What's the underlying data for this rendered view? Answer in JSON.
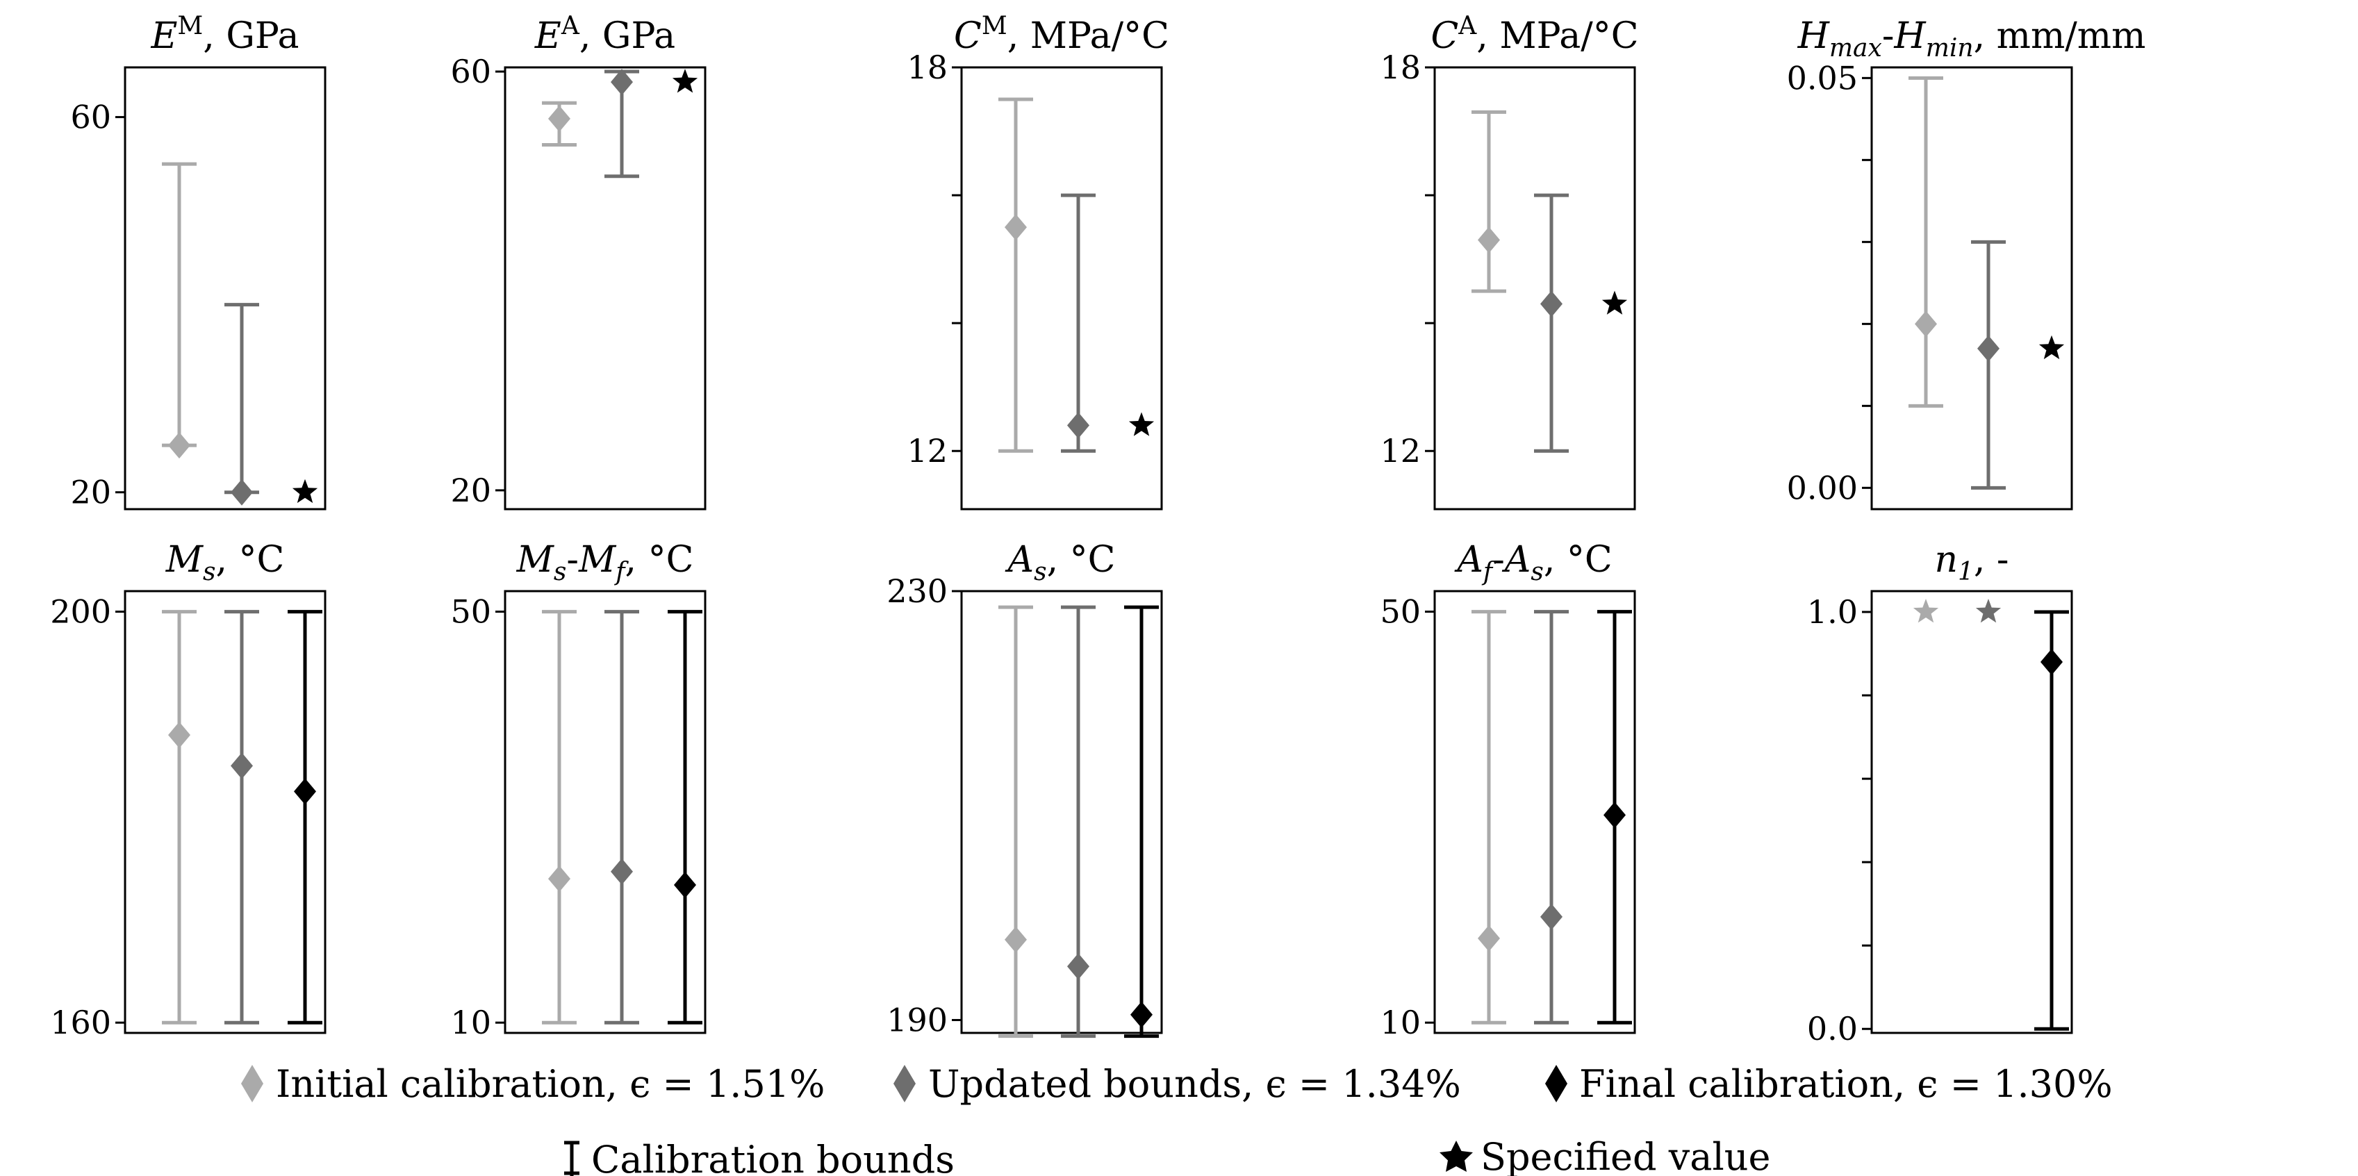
{
  "figure": {
    "legend": {
      "initial_label": "Initial calibration, ϵ = 1.51%",
      "updated_label": "Updated bounds, ϵ = 1.34%",
      "final_label": "Final calibration, ϵ = 1.30%",
      "bounds_label": "Calibration bounds",
      "specified_label": "Specified value"
    },
    "colors": {
      "initial": "#aaaaaa",
      "updated": "#6e6e6e",
      "final": "#000000"
    },
    "series": [
      "Initial calibration",
      "Updated bounds",
      "Final calibration"
    ]
  },
  "chart_data": [
    {
      "type": "scatter",
      "title": "E^M, GPa",
      "title_parts": [
        [
          "E",
          true,
          ""
        ],
        [
          "M",
          false,
          "sup"
        ],
        [
          ", GPa",
          false,
          ""
        ]
      ],
      "ylim": [
        18.2,
        65.3
      ],
      "yticks": [
        20,
        60
      ],
      "tick_labels": [
        "20",
        "60"
      ],
      "items": [
        {
          "series": "Initial calibration",
          "bounds": [
            25,
            55
          ],
          "value": 25
        },
        {
          "series": "Updated bounds",
          "bounds": [
            20,
            40
          ],
          "value": 20
        },
        {
          "series": "Final calibration",
          "specified": 20
        }
      ]
    },
    {
      "type": "scatter",
      "title": "E^A, GPa",
      "title_parts": [
        [
          "E",
          true,
          ""
        ],
        [
          "A",
          false,
          "sup"
        ],
        [
          ", GPa",
          false,
          ""
        ]
      ],
      "ylim": [
        18.2,
        60.4
      ],
      "yticks": [
        20,
        60
      ],
      "tick_labels": [
        "20",
        "60"
      ],
      "items": [
        {
          "series": "Initial calibration",
          "bounds": [
            53,
            57
          ],
          "value": 55.5
        },
        {
          "series": "Updated bounds",
          "bounds": [
            50,
            60
          ],
          "value": 59
        },
        {
          "series": "Final calibration",
          "specified": 59
        }
      ]
    },
    {
      "type": "scatter",
      "title": "C^M, MPa/°C",
      "title_parts": [
        [
          "C",
          true,
          ""
        ],
        [
          "M",
          false,
          "sup"
        ],
        [
          ", MPa/°C",
          false,
          ""
        ]
      ],
      "ylim": [
        11.09,
        18.0
      ],
      "yticks": [
        12,
        18
      ],
      "tick_labels": [
        "12",
        "18"
      ],
      "extra_ticks": [
        14,
        16
      ],
      "items": [
        {
          "series": "Initial calibration",
          "bounds": [
            12,
            17.5
          ],
          "value": 15.5
        },
        {
          "series": "Updated bounds",
          "bounds": [
            12,
            16
          ],
          "value": 12.4
        },
        {
          "series": "Final calibration",
          "specified": 12.4
        }
      ]
    },
    {
      "type": "scatter",
      "title": "C^A, MPa/°C",
      "title_parts": [
        [
          "C",
          true,
          ""
        ],
        [
          "A",
          false,
          "sup"
        ],
        [
          ", MPa/°C",
          false,
          ""
        ]
      ],
      "ylim": [
        11.09,
        18.0
      ],
      "yticks": [
        12,
        18
      ],
      "tick_labels": [
        "12",
        "18"
      ],
      "extra_ticks": [
        14,
        16
      ],
      "items": [
        {
          "series": "Initial calibration",
          "bounds": [
            14.5,
            17.3
          ],
          "value": 15.3
        },
        {
          "series": "Updated bounds",
          "bounds": [
            12,
            16
          ],
          "value": 14.3
        },
        {
          "series": "Final calibration",
          "specified": 14.3
        }
      ]
    },
    {
      "type": "scatter",
      "title": "H_max-H_min, mm/mm",
      "title_parts": [
        [
          "H",
          true,
          ""
        ],
        [
          "max",
          true,
          "sub"
        ],
        [
          "-",
          false,
          ""
        ],
        [
          "H",
          true,
          ""
        ],
        [
          "min",
          true,
          "sub"
        ],
        [
          ",",
          false,
          ""
        ],
        [
          " mm/mm",
          false,
          ""
        ]
      ],
      "ylim": [
        -0.0026,
        0.0513
      ],
      "yticks": [
        0.0,
        0.05
      ],
      "tick_labels": [
        "0.00",
        "0.05"
      ],
      "extra_ticks": [
        0.01,
        0.02,
        0.03,
        0.04
      ],
      "items": [
        {
          "series": "Initial calibration",
          "bounds": [
            0.01,
            0.05
          ],
          "value": 0.02
        },
        {
          "series": "Updated bounds",
          "bounds": [
            0.0,
            0.03
          ],
          "value": 0.017
        },
        {
          "series": "Final calibration",
          "specified": 0.017
        }
      ]
    },
    {
      "type": "scatter",
      "title": "M_s, °C",
      "title_parts": [
        [
          "M",
          true,
          ""
        ],
        [
          "s",
          true,
          "sub"
        ],
        [
          ",",
          false,
          ""
        ],
        [
          " °C",
          false,
          ""
        ]
      ],
      "ylim": [
        159.0,
        202.0
      ],
      "yticks": [
        160,
        200
      ],
      "tick_labels": [
        "160",
        "200"
      ],
      "items": [
        {
          "series": "Initial calibration",
          "bounds": [
            160,
            200
          ],
          "value": 188
        },
        {
          "series": "Updated bounds",
          "bounds": [
            160,
            200
          ],
          "value": 185
        },
        {
          "series": "Final calibration",
          "bounds": [
            160,
            200
          ],
          "value": 182.5
        }
      ]
    },
    {
      "type": "scatter",
      "title": "M_s-M_f, °C",
      "title_parts": [
        [
          "M",
          true,
          ""
        ],
        [
          "s",
          true,
          "sub"
        ],
        [
          "-",
          false,
          ""
        ],
        [
          "M",
          true,
          ""
        ],
        [
          "f",
          true,
          "sub"
        ],
        [
          ",",
          false,
          ""
        ],
        [
          " °C",
          false,
          ""
        ]
      ],
      "ylim": [
        9.0,
        52.0
      ],
      "yticks": [
        10,
        50
      ],
      "tick_labels": [
        "10",
        "50"
      ],
      "items": [
        {
          "series": "Initial calibration",
          "bounds": [
            10,
            50
          ],
          "value": 24
        },
        {
          "series": "Updated bounds",
          "bounds": [
            10,
            50
          ],
          "value": 24.7
        },
        {
          "series": "Final calibration",
          "bounds": [
            10,
            50
          ],
          "value": 23.4
        }
      ]
    },
    {
      "type": "scatter",
      "title": "A_s, °C",
      "title_parts": [
        [
          "A",
          true,
          ""
        ],
        [
          "s",
          true,
          "sub"
        ],
        [
          ",",
          false,
          ""
        ],
        [
          " °C",
          false,
          ""
        ]
      ],
      "ylim": [
        188.8,
        230.0
      ],
      "yticks": [
        190,
        230
      ],
      "tick_labels": [
        "190",
        "230"
      ],
      "items": [
        {
          "series": "Initial calibration",
          "bounds": [
            188.5,
            228.5
          ],
          "value": 197.5
        },
        {
          "series": "Updated bounds",
          "bounds": [
            188.5,
            228.5
          ],
          "value": 195
        },
        {
          "series": "Final calibration",
          "bounds": [
            188.5,
            228.5
          ],
          "value": 190.5
        }
      ]
    },
    {
      "type": "scatter",
      "title": "A_f-A_s, °C",
      "title_parts": [
        [
          "A",
          true,
          ""
        ],
        [
          "f",
          true,
          "sub"
        ],
        [
          "-",
          false,
          ""
        ],
        [
          "A",
          true,
          ""
        ],
        [
          "s",
          true,
          "sub"
        ],
        [
          ",",
          false,
          ""
        ],
        [
          " °C",
          false,
          ""
        ]
      ],
      "ylim": [
        9.0,
        52.0
      ],
      "yticks": [
        10,
        50
      ],
      "tick_labels": [
        "10",
        "50"
      ],
      "items": [
        {
          "series": "Initial calibration",
          "bounds": [
            10,
            50
          ],
          "value": 18.2
        },
        {
          "series": "Updated bounds",
          "bounds": [
            10,
            50
          ],
          "value": 20.3
        },
        {
          "series": "Final calibration",
          "bounds": [
            10,
            50
          ],
          "value": 30.2
        }
      ]
    },
    {
      "type": "scatter",
      "title": "n_1, -",
      "title_parts": [
        [
          "n",
          true,
          ""
        ],
        [
          "1",
          true,
          "sub"
        ],
        [
          ",",
          false,
          ""
        ],
        [
          " -",
          false,
          ""
        ]
      ],
      "ylim": [
        -0.0096,
        1.05
      ],
      "yticks": [
        0.0,
        1.0
      ],
      "tick_labels": [
        "0.0",
        "1.0"
      ],
      "extra_ticks": [
        0.2,
        0.4,
        0.6,
        0.8
      ],
      "items": [
        {
          "series": "Initial calibration",
          "specified": 1.0
        },
        {
          "series": "Updated bounds",
          "specified": 1.0
        },
        {
          "series": "Final calibration",
          "bounds": [
            0.0,
            1.0
          ],
          "value": 0.88
        }
      ]
    }
  ]
}
